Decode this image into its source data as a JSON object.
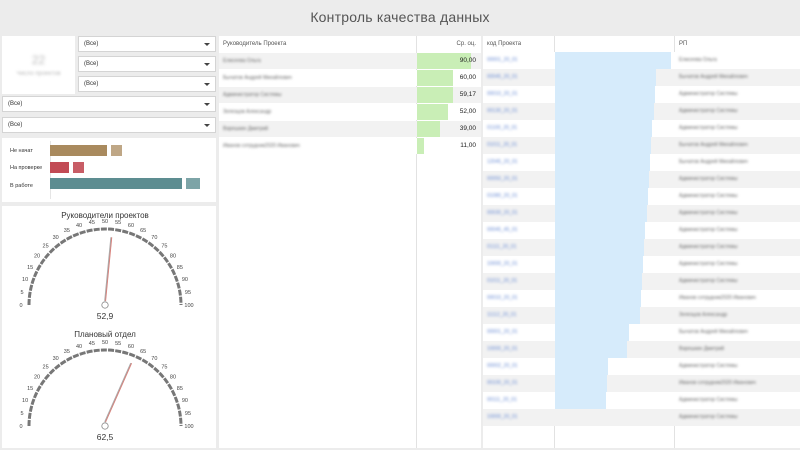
{
  "header": {
    "title": "Контроль качества данных"
  },
  "kpi": {
    "value": "22",
    "label": "Число проектов"
  },
  "filters": {
    "small": [
      "(Все)",
      "(Все)",
      "(Все)"
    ],
    "wide": [
      "(Все)",
      "(Все)"
    ]
  },
  "status_chart": {
    "items": [
      {
        "label": "Не начат",
        "value": 6,
        "color": "#a98a5e"
      },
      {
        "label": "На проверке",
        "value": 2,
        "color": "#c24b55"
      },
      {
        "label": "В работе",
        "value": 14,
        "color": "#5d8d91"
      }
    ]
  },
  "gauges": [
    {
      "title": "Руководители проектов",
      "value": 52.9,
      "value_label": "52,9",
      "min": 0,
      "max": 100,
      "ticks": [
        "0",
        "5",
        "10",
        "15",
        "20",
        "25",
        "30",
        "35",
        "40",
        "45",
        "50",
        "55",
        "60",
        "65",
        "70",
        "75",
        "80",
        "85",
        "90",
        "95",
        "100"
      ]
    },
    {
      "title": "Плановый отдел",
      "value": 62.5,
      "value_label": "62,5",
      "min": 0,
      "max": 100,
      "ticks": [
        "0",
        "5",
        "10",
        "15",
        "20",
        "25",
        "30",
        "35",
        "40",
        "45",
        "50",
        "55",
        "60",
        "65",
        "70",
        "75",
        "80",
        "85",
        "90",
        "95",
        "100"
      ]
    }
  ],
  "center_table": {
    "columns": [
      "Руководитель Проекта",
      "Ср. оц."
    ],
    "rows": [
      {
        "name": "Елисеева Ольга",
        "score": 90,
        "score_label": "90,00"
      },
      {
        "name": "Бычатов Андрей Михайлович",
        "score": 60,
        "score_label": "60,00"
      },
      {
        "name": "Администратор Системы",
        "score": 59.17,
        "score_label": "59,17"
      },
      {
        "name": "Зелезцов Александр",
        "score": 52,
        "score_label": "52,00"
      },
      {
        "name": "Варешкин Дмитрий",
        "score": 39,
        "score_label": "39,00"
      },
      {
        "name": "Иванов сотрудник2020 Иванович",
        "score": 11,
        "score_label": "11,00"
      }
    ]
  },
  "right_table": {
    "columns": [
      "код Проекта",
      "",
      "РП"
    ],
    "rows": [
      {
        "code": "00001_20_01",
        "value": 100,
        "rp": "Елисеева Ольга"
      },
      {
        "code": "00045_20_01",
        "value": 87,
        "rp": "Бычатов Андрей Михайлович"
      },
      {
        "code": "00010_20_01",
        "value": 86,
        "rp": "Администратор Системы"
      },
      {
        "code": "00130_20_01",
        "value": 85,
        "rp": "Администратор Системы"
      },
      {
        "code": "01100_20_01",
        "value": 84,
        "rp": "Администратор Системы"
      },
      {
        "code": "01011_20_01",
        "value": 83,
        "rp": "Бычатов Андрей Михайлович"
      },
      {
        "code": "12045_20_01",
        "value": 82,
        "rp": "Бычатов Андрей Михайлович"
      },
      {
        "code": "00050_20_01",
        "value": 81,
        "rp": "Администратор Системы"
      },
      {
        "code": "01080_20_01",
        "value": 80,
        "rp": "Администратор Системы"
      },
      {
        "code": "00030_20_01",
        "value": 79,
        "rp": "Администратор Системы"
      },
      {
        "code": "00045_45_01",
        "value": 78,
        "rp": "Администратор Системы"
      },
      {
        "code": "01111_20_01",
        "value": 77,
        "rp": "Администратор Системы"
      },
      {
        "code": "10000_20_01",
        "value": 76,
        "rp": "Администратор Системы"
      },
      {
        "code": "01011_20_01",
        "value": 75,
        "rp": "Администратор Системы"
      },
      {
        "code": "00010_20_01",
        "value": 74,
        "rp": "Иванов сотрудник2020 Иванович"
      },
      {
        "code": "11112_20_01",
        "value": 73,
        "rp": "Зелезцов Александр"
      },
      {
        "code": "00001_20_01",
        "value": 64,
        "rp": "Бычатов Андрей Михайлович"
      },
      {
        "code": "10000_20_01",
        "value": 62,
        "rp": "Варешкин Дмитрий"
      },
      {
        "code": "00002_20_01",
        "value": 46,
        "rp": "Администратор Системы"
      },
      {
        "code": "00100_20_01",
        "value": 45,
        "rp": "Иванов сотрудник2020 Иванович"
      },
      {
        "code": "00111_20_01",
        "value": 44,
        "rp": "Администратор Системы"
      },
      {
        "code": "10000_20_01",
        "value": 0,
        "rp": "Администратор Системы"
      }
    ]
  },
  "colors": {
    "status_not_started": "#a98a5e",
    "status_review": "#c24b55",
    "status_in_work": "#5d8d91",
    "score_bar": "#c9eeb6",
    "project_bar": "#d6ebfb",
    "gauge_needle": "#d9807a",
    "gauge_arc": "#777777"
  }
}
